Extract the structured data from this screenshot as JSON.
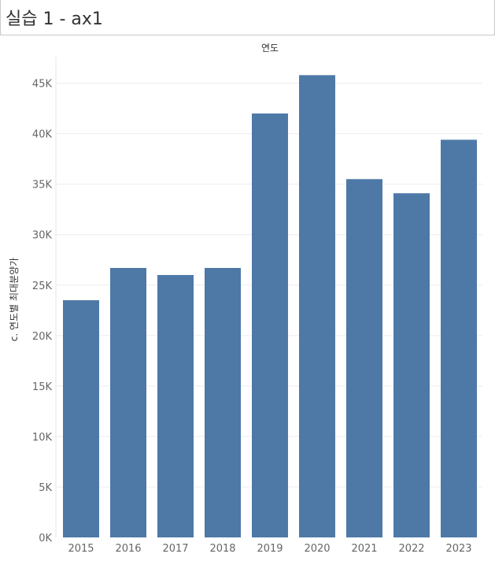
{
  "sheet": {
    "title": "실습 1 - ax1"
  },
  "chart_data": {
    "type": "bar",
    "title": "",
    "column_header": "연도",
    "xlabel": "",
    "ylabel": "c. 연도별 최대분양가",
    "categories": [
      "2015",
      "2016",
      "2017",
      "2018",
      "2019",
      "2020",
      "2021",
      "2022",
      "2023"
    ],
    "values": [
      23500,
      26700,
      26000,
      26700,
      42000,
      45800,
      35500,
      34100,
      39400
    ],
    "ylim": [
      0,
      47000
    ],
    "y_ticks": [
      0,
      5000,
      10000,
      15000,
      20000,
      25000,
      30000,
      35000,
      40000,
      45000
    ],
    "y_tick_labels": [
      "0K",
      "5K",
      "10K",
      "15K",
      "20K",
      "25K",
      "30K",
      "35K",
      "40K",
      "45K"
    ],
    "grid": true,
    "bar_color": "#4e79a7",
    "grid_color": "#ececec"
  }
}
